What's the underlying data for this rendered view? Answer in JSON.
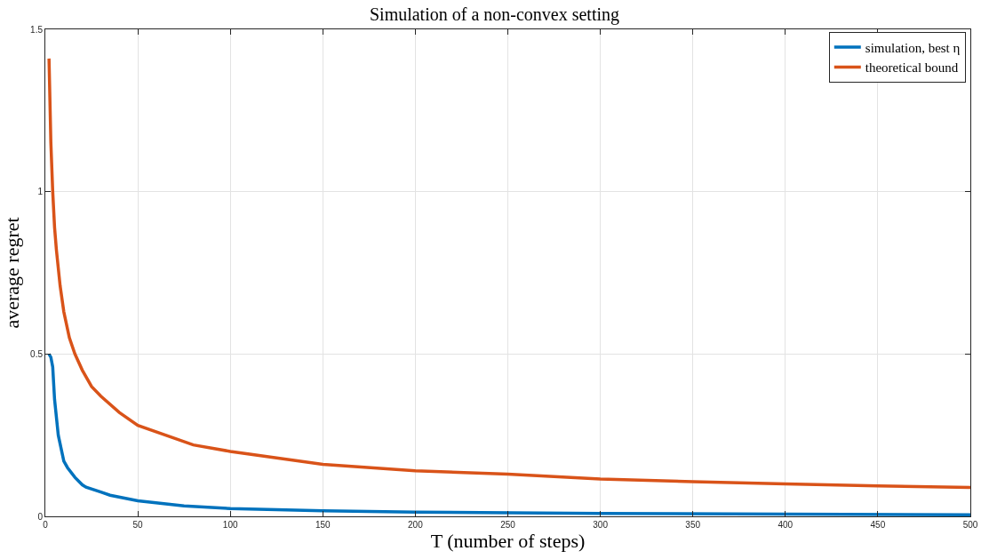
{
  "chart_data": {
    "type": "line",
    "title": "Simulation of a non-convex setting",
    "xlabel": "T (number of steps)",
    "ylabel": "average regret",
    "xlim": [
      0,
      500
    ],
    "xticks": [
      0,
      50,
      100,
      150,
      200,
      250,
      300,
      350,
      400,
      450,
      500
    ],
    "ylim": [
      0,
      1.5
    ],
    "yticks": [
      0,
      0.5,
      1,
      1.5
    ],
    "grid": true,
    "legend": "top right",
    "marker": "none",
    "line_style": "solid",
    "series": [
      {
        "name": "simulation, best η",
        "color": "#0072bd",
        "x": [
          2,
          3,
          4,
          5,
          7,
          10,
          12,
          16,
          20,
          22,
          30,
          35,
          50,
          75,
          100,
          150,
          200,
          300,
          400,
          500
        ],
        "values": [
          0.5,
          0.49,
          0.46,
          0.36,
          0.25,
          0.17,
          0.15,
          0.12,
          0.097,
          0.09,
          0.075,
          0.065,
          0.048,
          0.032,
          0.024,
          0.017,
          0.013,
          0.009,
          0.007,
          0.005
        ]
      },
      {
        "name": "theoretical bound",
        "color": "#d95319",
        "x": [
          2,
          3,
          4,
          5,
          6,
          8,
          10,
          13,
          16,
          20,
          25,
          30,
          40,
          50,
          65,
          80,
          100,
          125,
          150,
          200,
          250,
          300,
          350,
          400,
          450,
          500
        ],
        "values": [
          1.41,
          1.15,
          1.0,
          0.89,
          0.82,
          0.71,
          0.63,
          0.55,
          0.5,
          0.45,
          0.4,
          0.37,
          0.32,
          0.28,
          0.25,
          0.22,
          0.2,
          0.18,
          0.16,
          0.14,
          0.13,
          0.115,
          0.107,
          0.1,
          0.094,
          0.089
        ]
      }
    ]
  }
}
